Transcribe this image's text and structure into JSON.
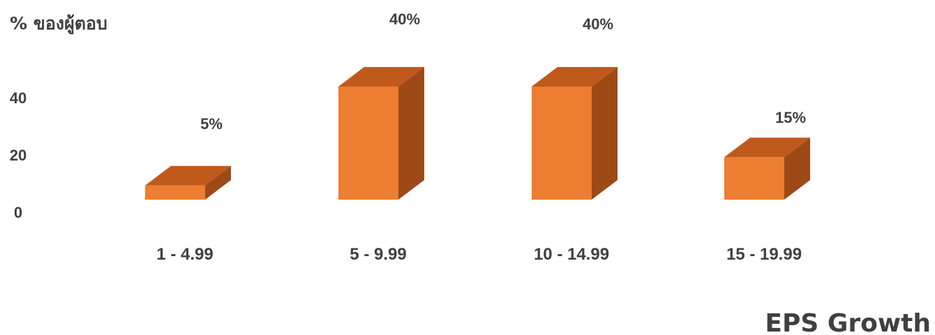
{
  "chart_data": {
    "type": "bar",
    "style": "3d-column",
    "categories": [
      "1 - 4.99",
      "5 - 9.99",
      "10 - 14.99",
      "15 - 19.99"
    ],
    "values": [
      5,
      40,
      40,
      15
    ],
    "data_labels": [
      "5%",
      "40%",
      "40%",
      "15%"
    ],
    "ylabel": "% ของผู้ตอบ",
    "xlabel": "EPS Growth",
    "yticks": [
      0,
      20,
      40
    ],
    "ylim": [
      0,
      40
    ],
    "grid": false,
    "legend": "none",
    "colors": {
      "front": "#ED7D31",
      "top": "#C05A1C",
      "side": "#9E4A17",
      "text": "#404040"
    }
  }
}
